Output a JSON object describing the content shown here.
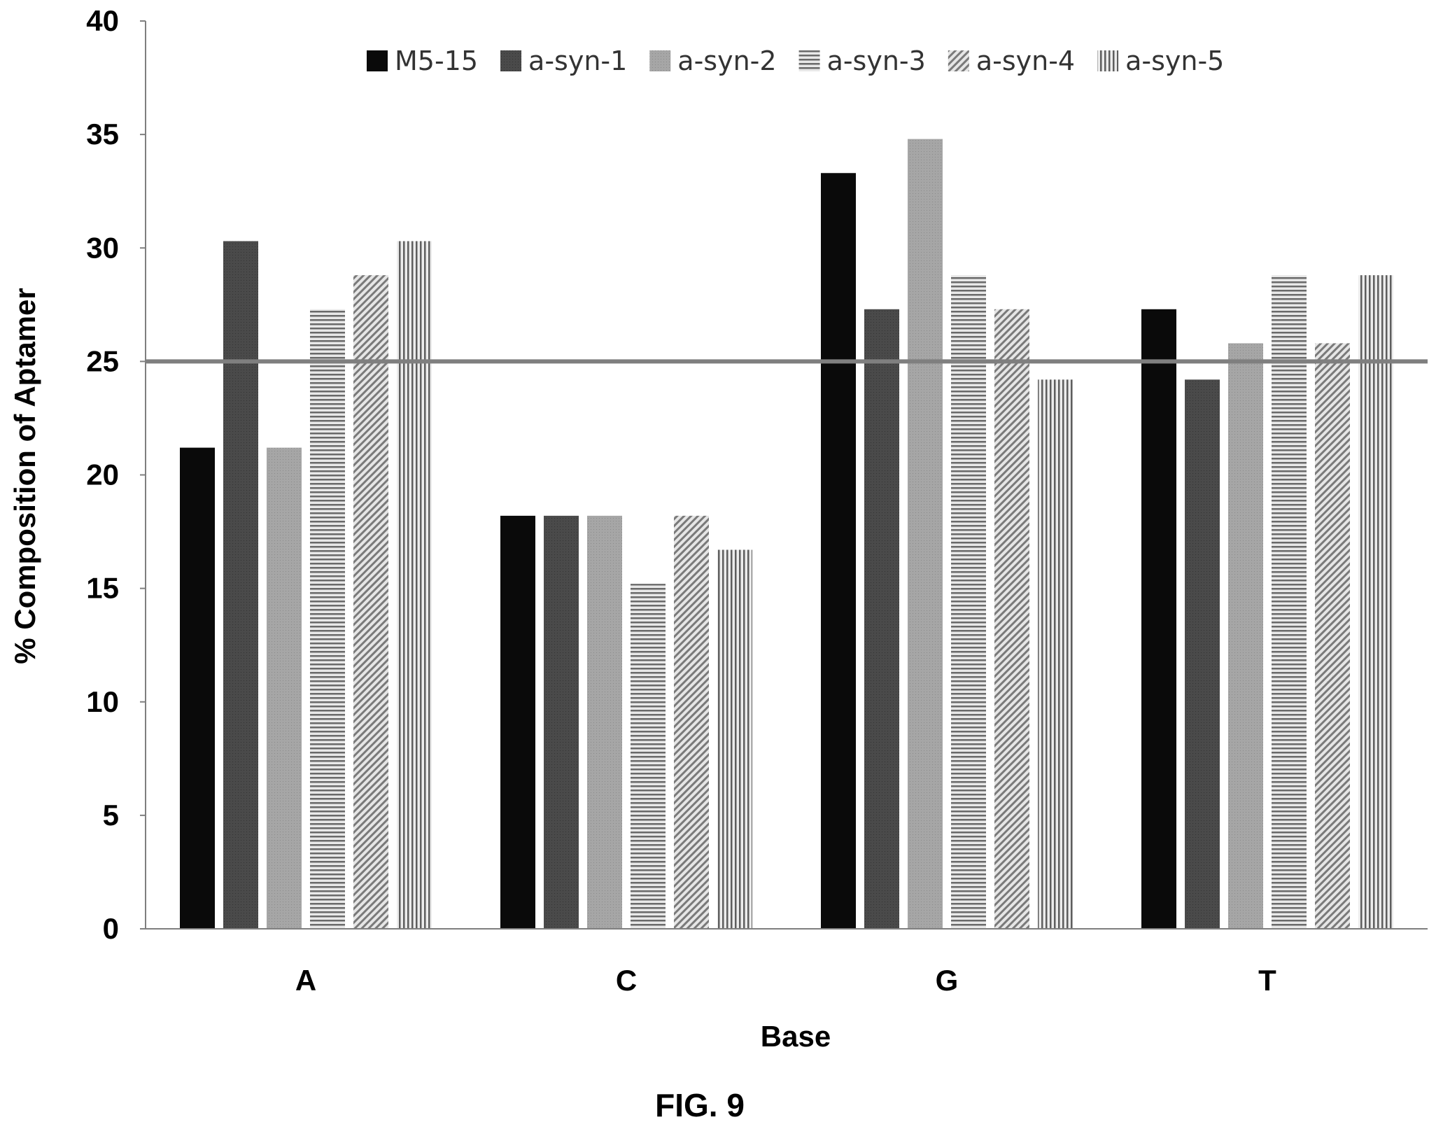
{
  "figure_caption": "FIG. 9",
  "chart_data": {
    "type": "bar",
    "title": "",
    "xlabel": "Base",
    "ylabel": "% Composition of Aptamer",
    "categories": [
      "A",
      "C",
      "G",
      "T"
    ],
    "ylim": [
      0,
      40
    ],
    "yticks": [
      0,
      5,
      10,
      15,
      20,
      25,
      30,
      35,
      40
    ],
    "reference_line": {
      "y": 25,
      "color": "#7f7f7f"
    },
    "grid": false,
    "legend_position": "top",
    "series": [
      {
        "name": "M5-15",
        "values": [
          21.2,
          18.2,
          33.3,
          27.3
        ],
        "pattern": "solid-black"
      },
      {
        "name": "a-syn-1",
        "values": [
          30.3,
          18.2,
          27.3,
          24.2
        ],
        "pattern": "dark-gray"
      },
      {
        "name": "a-syn-2",
        "values": [
          21.2,
          18.2,
          34.8,
          25.8
        ],
        "pattern": "light-gray"
      },
      {
        "name": "a-syn-3",
        "values": [
          27.3,
          15.2,
          28.8,
          28.8
        ],
        "pattern": "horizontal-stripes"
      },
      {
        "name": "a-syn-4",
        "values": [
          28.8,
          18.2,
          27.3,
          25.8
        ],
        "pattern": "diagonal-stripes"
      },
      {
        "name": "a-syn-5",
        "values": [
          30.3,
          16.7,
          24.2,
          28.8
        ],
        "pattern": "vertical-stripes"
      }
    ]
  }
}
